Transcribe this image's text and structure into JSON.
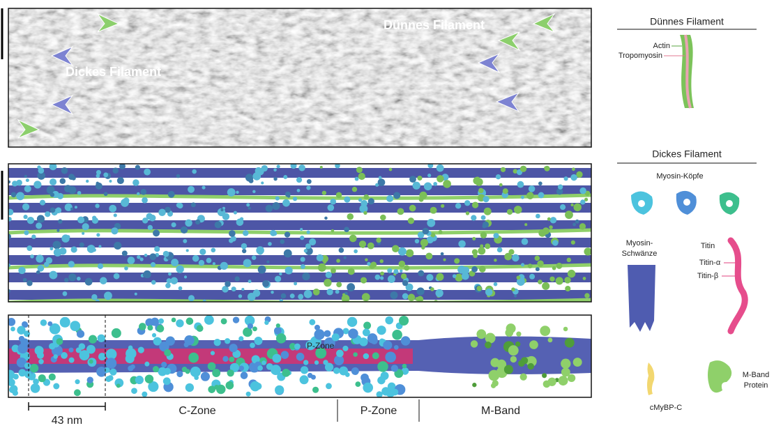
{
  "tomogram": {
    "thin_label": "Dünnes Filament",
    "thick_label": "Dickes Filament"
  },
  "structure": {
    "label": "P-Zone"
  },
  "scale_bar": "43 nm",
  "zones": [
    "C-Zone",
    "P-Zone",
    "M-Band"
  ],
  "legend": {
    "thin_filament": {
      "title": "Dünnes Filament",
      "actin": "Actin",
      "tropomyosin": "Tropomyosin"
    },
    "thick_filament": {
      "title": "Dickes Filament",
      "myosin_heads": "Myosin-Köpfe",
      "myosin_tails": [
        "Myosin-",
        "Schwänze"
      ],
      "titin": "Titin",
      "titin_alpha": "Titin-α",
      "titin_beta": "Titin-β",
      "cmybpc": "cMyBP-C",
      "m_band_protein": [
        "M-Band",
        "Protein"
      ]
    }
  }
}
